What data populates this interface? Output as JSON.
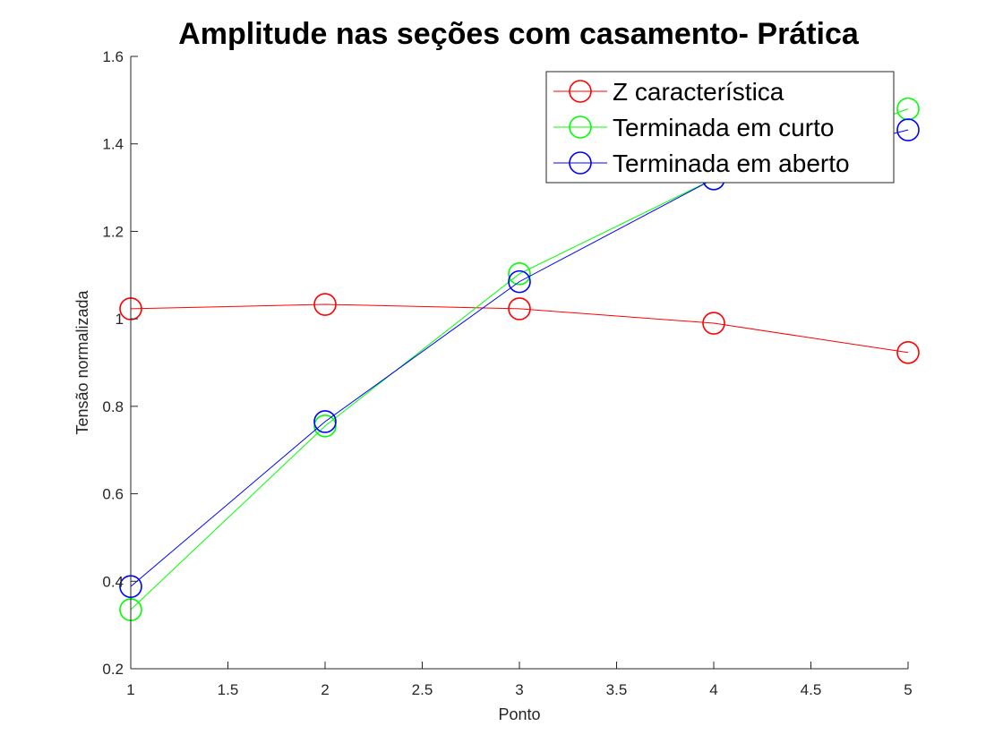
{
  "chart_data": {
    "type": "line",
    "title": "Amplitude nas seções com casamento- Prática",
    "xlabel": "Ponto",
    "ylabel": "Tensão normalizada",
    "xlim": [
      1,
      5
    ],
    "ylim": [
      0.2,
      1.6
    ],
    "xticks": [
      "1",
      "1.5",
      "2",
      "2.5",
      "3",
      "3.5",
      "4",
      "4.5",
      "5"
    ],
    "yticks": [
      "0.2",
      "0.4",
      "0.6",
      "0.8",
      "1",
      "1.2",
      "1.4",
      "1.6"
    ],
    "grid": false,
    "legend_position": "top-right",
    "x": [
      1,
      2,
      3,
      4,
      5
    ],
    "series": [
      {
        "name": "Z característica",
        "color": "#ff0000",
        "marker": "circle",
        "values": [
          1.023,
          1.033,
          1.023,
          0.99,
          0.923
        ]
      },
      {
        "name": "Terminada em curto",
        "color": "#00ff00",
        "marker": "circle",
        "values": [
          0.335,
          0.755,
          1.103,
          1.32,
          1.48
        ]
      },
      {
        "name": "Terminada em aberto",
        "color": "#0000ff",
        "marker": "circle",
        "values": [
          0.388,
          0.765,
          1.085,
          1.32,
          1.432
        ]
      }
    ]
  }
}
